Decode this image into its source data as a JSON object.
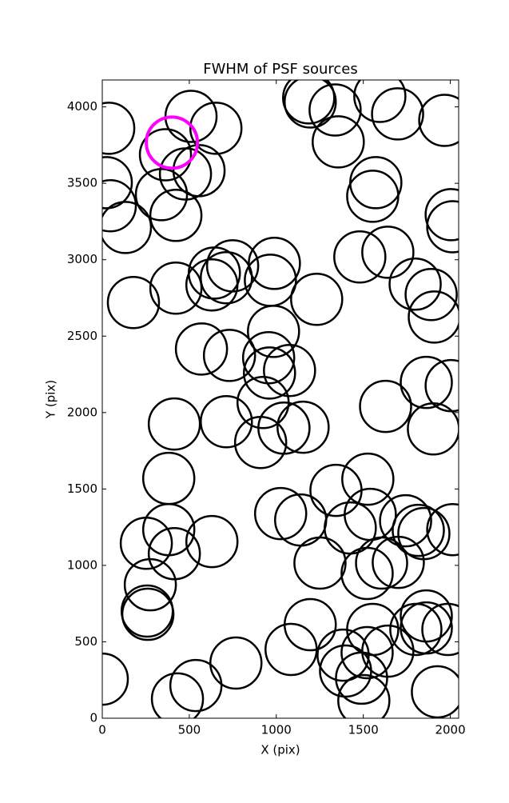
{
  "chart_data": {
    "type": "scatter",
    "title": "FWHM of PSF sources",
    "x_label": "X (pix)",
    "y_label": "Y (pix)",
    "xlim": [
      0,
      2048
    ],
    "ylim": [
      0,
      4176
    ],
    "xticks": [
      0,
      500,
      1000,
      1500,
      2000
    ],
    "yticks": [
      0,
      500,
      1000,
      1500,
      2000,
      2500,
      3000,
      3500,
      4000
    ],
    "series": [
      {
        "color": "#000000",
        "x": [
          37,
          510,
          653,
          363,
          478,
          556,
          340,
          423,
          23,
          46,
          133,
          1186,
          1195,
          1338,
          1595,
          1697,
          1356,
          1968,
          1572,
          1554,
          2005,
          2014,
          1480,
          1641,
          1798,
          1890,
          1908,
          179,
          423,
          644,
          630,
          713,
          749,
          989,
          966,
          1232,
          570,
          731,
          984,
          956,
          961,
          1076,
          924,
          414,
          713,
          1044,
          1154,
          910,
          1628,
          1862,
          2005,
          1903,
          382,
          1343,
          1526,
          1540,
          1025,
          1140,
          1425,
          1743,
          1816,
          1848,
          2014,
          382,
          253,
          414,
          630,
          1251,
          1605,
          1701,
          1522,
          276,
          258,
          262,
          1195,
          1554,
          1802,
          1862,
          1862,
          1986,
          1085,
          1384,
          1398,
          1522,
          1641,
          1490,
          1503,
          1926,
          0,
          432,
          538,
          768
        ],
        "values": [
          3860,
          3938,
          3860,
          3687,
          3561,
          3583,
          3426,
          3290,
          3504,
          3353,
          3211,
          4059,
          4032,
          3980,
          4069,
          3954,
          3771,
          3912,
          3504,
          3415,
          3295,
          3216,
          3018,
          3049,
          2840,
          2772,
          2625,
          2720,
          2814,
          2913,
          2835,
          2882,
          2960,
          2976,
          2866,
          2741,
          2416,
          2374,
          2531,
          2359,
          2259,
          2275,
          2066,
          1925,
          1940,
          1898,
          1904,
          1804,
          2040,
          2197,
          2176,
          1893,
          1569,
          1491,
          1564,
          1334,
          1339,
          1297,
          1245,
          1292,
          1229,
          1208,
          1234,
          1234,
          1145,
          1077,
          1156,
          1015,
          1015,
          1020,
          947,
          873,
          701,
          680,
          612,
          581,
          581,
          669,
          591,
          581,
          450,
          413,
          309,
          429,
          439,
          262,
          115,
          173,
          256,
          126,
          214,
          361
        ]
      },
      {
        "color": "#ff00ff",
        "x": [
          400
        ],
        "values": [
          3766
        ]
      }
    ]
  }
}
